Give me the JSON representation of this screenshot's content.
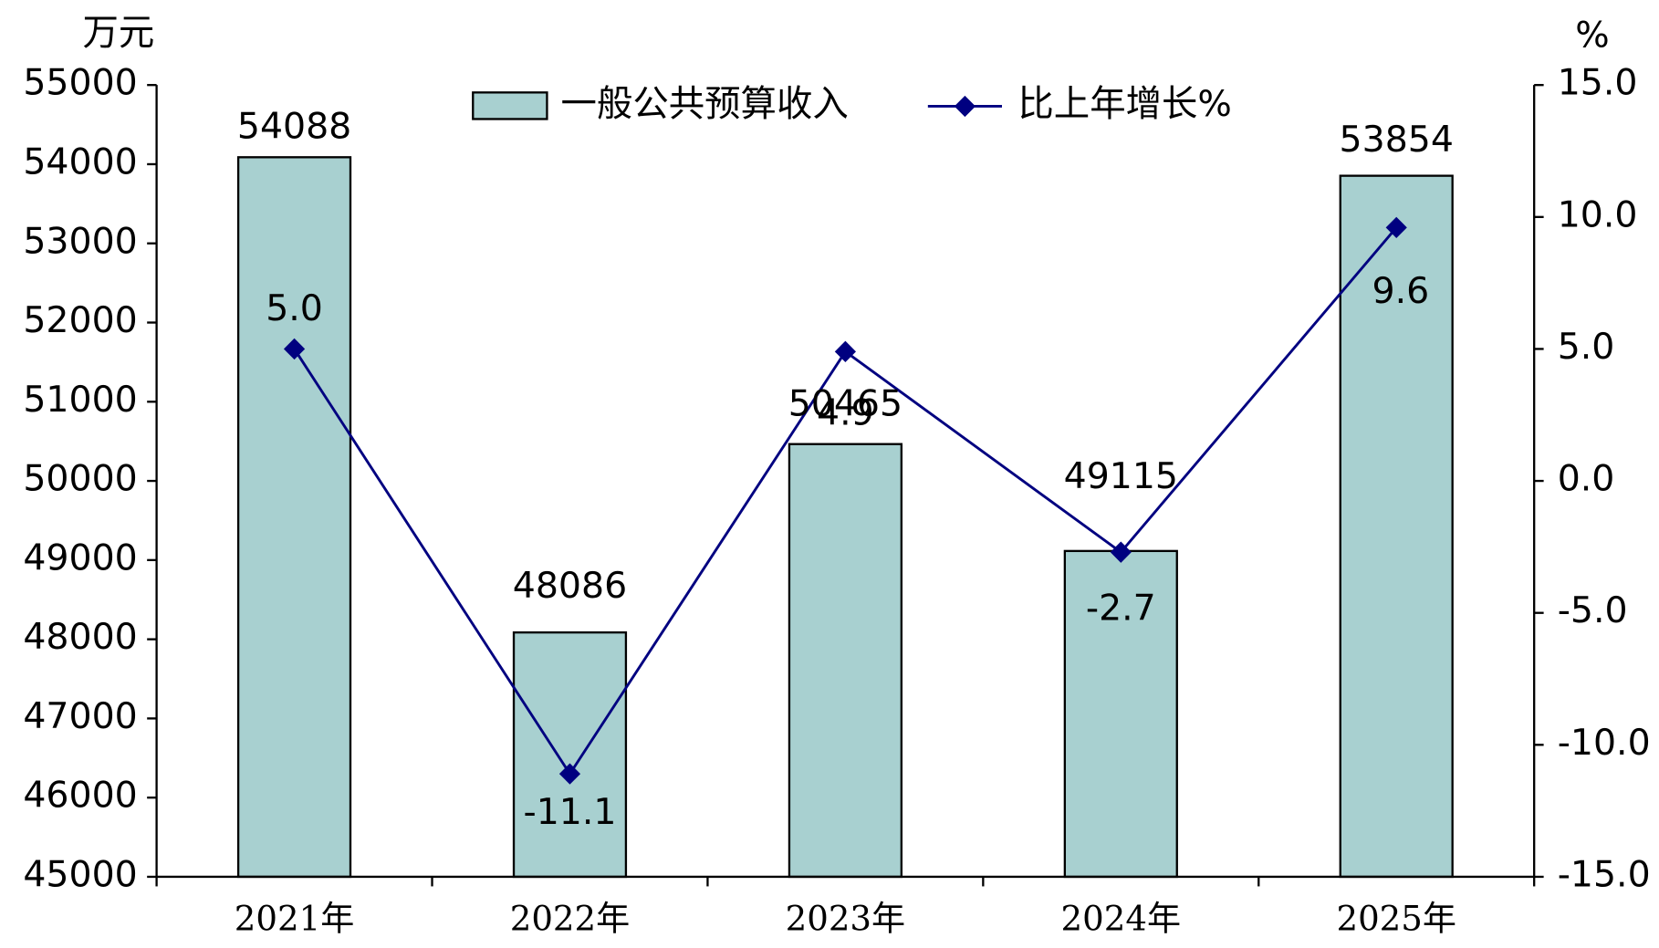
{
  "chart_data": {
    "type": "bar_line",
    "y_label": "万元",
    "y2_label": "%",
    "categories": [
      "2021年",
      "2022年",
      "2023年",
      "2024年",
      "2025年"
    ],
    "series": [
      {
        "name": "一般公共预算收入",
        "type": "bar",
        "color": "#a8d0d0",
        "values": [
          54088,
          48086,
          50465,
          49115,
          53854
        ]
      },
      {
        "name": "比上年增长%",
        "type": "line",
        "axis": "y2",
        "color": "#000080",
        "values": [
          5.0,
          -11.1,
          4.9,
          -2.7,
          9.6
        ],
        "value_labels": [
          "5.0",
          "-11.1",
          "4.9",
          "-2.7",
          "9.6"
        ]
      }
    ],
    "ylim": [
      45000,
      55000
    ],
    "yticks": [
      45000,
      46000,
      47000,
      48000,
      49000,
      50000,
      51000,
      52000,
      53000,
      54000,
      55000
    ],
    "y2lim": [
      -15,
      15
    ],
    "y2ticks": [
      {
        "value": -15,
        "label": "-15.0"
      },
      {
        "value": -10,
        "label": "-10.0"
      },
      {
        "value": -5,
        "label": "-5.0"
      },
      {
        "value": 0,
        "label": "0.0"
      },
      {
        "value": 5,
        "label": "5.0"
      },
      {
        "value": 10,
        "label": "10.0"
      },
      {
        "value": 15,
        "label": "15.0"
      }
    ],
    "legend": "top"
  }
}
